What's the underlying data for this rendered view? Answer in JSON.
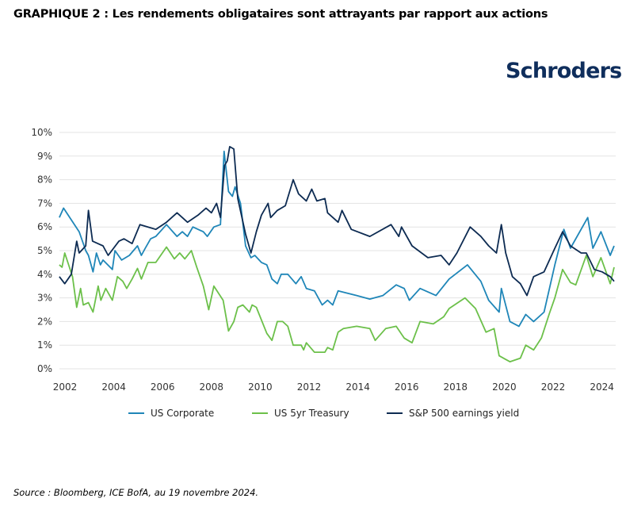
{
  "title": "GRAPHIQUE 2 : Les rendements obligataires sont attrayants par rapport aux actions",
  "logo_text": "Schroders",
  "source": "Source : Bloomberg, ICE BofA, au 19 novembre 2024.",
  "chart_data": {
    "type": "line",
    "title": "",
    "xlabel": "",
    "ylabel": "",
    "xlim": [
      2001.75,
      2024.55
    ],
    "ylim": [
      0,
      10
    ],
    "grid": true,
    "legend": "bottom",
    "x_ticks": [
      "2002",
      "2004",
      "2006",
      "2008",
      "2010",
      "2012",
      "2014",
      "2016",
      "2018",
      "2020",
      "2022",
      "2024"
    ],
    "y_ticks": [
      "0%",
      "1%",
      "2%",
      "3%",
      "4%",
      "5%",
      "6%",
      "7%",
      "8%",
      "9%",
      "10%"
    ],
    "series": [
      {
        "name": "US Corporate",
        "color": "#1f86b8",
        "points": [
          [
            2001.77,
            6.4
          ],
          [
            2001.94,
            6.8
          ],
          [
            2002.26,
            6.3
          ],
          [
            2002.58,
            5.8
          ],
          [
            2002.85,
            5.0
          ],
          [
            2002.96,
            4.8
          ],
          [
            2003.15,
            4.1
          ],
          [
            2003.29,
            4.9
          ],
          [
            2003.45,
            4.4
          ],
          [
            2003.56,
            4.6
          ],
          [
            2003.94,
            4.2
          ],
          [
            2004.05,
            5.0
          ],
          [
            2004.32,
            4.6
          ],
          [
            2004.64,
            4.8
          ],
          [
            2004.97,
            5.2
          ],
          [
            2005.13,
            4.8
          ],
          [
            2005.29,
            5.1
          ],
          [
            2005.51,
            5.5
          ],
          [
            2005.72,
            5.6
          ],
          [
            2006.16,
            6.1
          ],
          [
            2006.59,
            5.6
          ],
          [
            2006.81,
            5.8
          ],
          [
            2007.02,
            5.6
          ],
          [
            2007.24,
            6.0
          ],
          [
            2007.67,
            5.8
          ],
          [
            2007.83,
            5.6
          ],
          [
            2008.1,
            6.0
          ],
          [
            2008.37,
            6.1
          ],
          [
            2008.52,
            9.2
          ],
          [
            2008.7,
            7.5
          ],
          [
            2008.86,
            7.3
          ],
          [
            2008.97,
            7.7
          ],
          [
            2009.19,
            7.0
          ],
          [
            2009.4,
            5.2
          ],
          [
            2009.62,
            4.7
          ],
          [
            2009.78,
            4.8
          ],
          [
            2010.05,
            4.5
          ],
          [
            2010.27,
            4.4
          ],
          [
            2010.48,
            3.8
          ],
          [
            2010.7,
            3.6
          ],
          [
            2010.86,
            4.0
          ],
          [
            2011.13,
            4.0
          ],
          [
            2011.46,
            3.6
          ],
          [
            2011.68,
            3.9
          ],
          [
            2011.89,
            3.4
          ],
          [
            2012.22,
            3.3
          ],
          [
            2012.54,
            2.7
          ],
          [
            2012.76,
            2.9
          ],
          [
            2012.97,
            2.7
          ],
          [
            2013.19,
            3.3
          ],
          [
            2013.95,
            3.1
          ],
          [
            2014.49,
            2.95
          ],
          [
            2015.03,
            3.1
          ],
          [
            2015.57,
            3.55
          ],
          [
            2015.9,
            3.4
          ],
          [
            2016.11,
            2.9
          ],
          [
            2016.55,
            3.4
          ],
          [
            2017.2,
            3.1
          ],
          [
            2017.74,
            3.8
          ],
          [
            2018.49,
            4.4
          ],
          [
            2019.04,
            3.7
          ],
          [
            2019.36,
            2.9
          ],
          [
            2019.79,
            2.4
          ],
          [
            2019.88,
            3.4
          ],
          [
            2020.23,
            2.0
          ],
          [
            2020.6,
            1.8
          ],
          [
            2020.88,
            2.3
          ],
          [
            2021.2,
            2.0
          ],
          [
            2021.63,
            2.4
          ],
          [
            2022.07,
            4.4
          ],
          [
            2022.44,
            5.9
          ],
          [
            2022.71,
            5.1
          ],
          [
            2023.42,
            6.4
          ],
          [
            2023.63,
            5.1
          ],
          [
            2023.96,
            5.8
          ],
          [
            2024.34,
            4.8
          ],
          [
            2024.5,
            5.2
          ]
        ]
      },
      {
        "name": "US 5yr Treasury",
        "color": "#6cc04a",
        "points": [
          [
            2001.77,
            4.4
          ],
          [
            2001.88,
            4.3
          ],
          [
            2001.99,
            4.9
          ],
          [
            2002.15,
            4.4
          ],
          [
            2002.31,
            3.9
          ],
          [
            2002.48,
            2.6
          ],
          [
            2002.64,
            3.4
          ],
          [
            2002.75,
            2.7
          ],
          [
            2002.96,
            2.8
          ],
          [
            2003.15,
            2.4
          ],
          [
            2003.36,
            3.5
          ],
          [
            2003.47,
            2.9
          ],
          [
            2003.67,
            3.4
          ],
          [
            2003.94,
            2.9
          ],
          [
            2004.15,
            3.9
          ],
          [
            2004.37,
            3.7
          ],
          [
            2004.53,
            3.4
          ],
          [
            2004.75,
            3.8
          ],
          [
            2004.97,
            4.25
          ],
          [
            2005.13,
            3.8
          ],
          [
            2005.4,
            4.5
          ],
          [
            2005.72,
            4.5
          ],
          [
            2006.16,
            5.15
          ],
          [
            2006.48,
            4.65
          ],
          [
            2006.7,
            4.9
          ],
          [
            2006.91,
            4.65
          ],
          [
            2007.18,
            5.0
          ],
          [
            2007.4,
            4.3
          ],
          [
            2007.67,
            3.5
          ],
          [
            2007.89,
            2.5
          ],
          [
            2008.1,
            3.5
          ],
          [
            2008.48,
            2.9
          ],
          [
            2008.7,
            1.6
          ],
          [
            2008.92,
            2.0
          ],
          [
            2009.08,
            2.6
          ],
          [
            2009.29,
            2.7
          ],
          [
            2009.56,
            2.4
          ],
          [
            2009.67,
            2.7
          ],
          [
            2009.84,
            2.6
          ],
          [
            2010.27,
            1.5
          ],
          [
            2010.48,
            1.2
          ],
          [
            2010.7,
            2.0
          ],
          [
            2010.92,
            2.0
          ],
          [
            2011.13,
            1.8
          ],
          [
            2011.35,
            1.0
          ],
          [
            2011.68,
            1.0
          ],
          [
            2011.78,
            0.8
          ],
          [
            2011.89,
            1.1
          ],
          [
            2012.22,
            0.7
          ],
          [
            2012.65,
            0.7
          ],
          [
            2012.76,
            0.9
          ],
          [
            2012.97,
            0.8
          ],
          [
            2013.19,
            1.55
          ],
          [
            2013.41,
            1.7
          ],
          [
            2013.95,
            1.8
          ],
          [
            2014.49,
            1.7
          ],
          [
            2014.71,
            1.2
          ],
          [
            2015.14,
            1.7
          ],
          [
            2015.57,
            1.8
          ],
          [
            2015.9,
            1.3
          ],
          [
            2016.22,
            1.1
          ],
          [
            2016.55,
            2.0
          ],
          [
            2017.09,
            1.9
          ],
          [
            2017.52,
            2.2
          ],
          [
            2017.74,
            2.55
          ],
          [
            2018.39,
            3.0
          ],
          [
            2018.82,
            2.55
          ],
          [
            2019.25,
            1.55
          ],
          [
            2019.58,
            1.7
          ],
          [
            2019.79,
            0.55
          ],
          [
            2020.23,
            0.3
          ],
          [
            2020.66,
            0.45
          ],
          [
            2020.88,
            1.0
          ],
          [
            2021.2,
            0.8
          ],
          [
            2021.52,
            1.3
          ],
          [
            2021.85,
            2.35
          ],
          [
            2022.07,
            3.0
          ],
          [
            2022.39,
            4.2
          ],
          [
            2022.71,
            3.65
          ],
          [
            2022.93,
            3.55
          ],
          [
            2023.36,
            4.8
          ],
          [
            2023.63,
            3.9
          ],
          [
            2023.96,
            4.7
          ],
          [
            2024.34,
            3.6
          ],
          [
            2024.5,
            4.3
          ]
        ]
      },
      {
        "name": "S&P 500 earnings yield",
        "color": "#0d2b52",
        "points": [
          [
            2001.77,
            3.9
          ],
          [
            2001.99,
            3.6
          ],
          [
            2002.26,
            4.0
          ],
          [
            2002.48,
            5.4
          ],
          [
            2002.58,
            4.9
          ],
          [
            2002.85,
            5.2
          ],
          [
            2002.96,
            6.7
          ],
          [
            2003.13,
            5.4
          ],
          [
            2003.56,
            5.2
          ],
          [
            2003.77,
            4.8
          ],
          [
            2004.21,
            5.4
          ],
          [
            2004.42,
            5.5
          ],
          [
            2004.75,
            5.3
          ],
          [
            2005.07,
            6.1
          ],
          [
            2005.4,
            6.0
          ],
          [
            2005.72,
            5.9
          ],
          [
            2006.16,
            6.2
          ],
          [
            2006.59,
            6.6
          ],
          [
            2007.02,
            6.2
          ],
          [
            2007.45,
            6.5
          ],
          [
            2007.78,
            6.8
          ],
          [
            2008.0,
            6.6
          ],
          [
            2008.21,
            7.0
          ],
          [
            2008.37,
            6.4
          ],
          [
            2008.54,
            8.6
          ],
          [
            2008.65,
            8.8
          ],
          [
            2008.75,
            9.4
          ],
          [
            2008.92,
            9.3
          ],
          [
            2009.08,
            7.2
          ],
          [
            2009.4,
            5.7
          ],
          [
            2009.62,
            4.9
          ],
          [
            2009.84,
            5.8
          ],
          [
            2010.05,
            6.5
          ],
          [
            2010.32,
            7.0
          ],
          [
            2010.43,
            6.4
          ],
          [
            2010.7,
            6.7
          ],
          [
            2011.03,
            6.9
          ],
          [
            2011.35,
            8.0
          ],
          [
            2011.57,
            7.4
          ],
          [
            2011.89,
            7.1
          ],
          [
            2012.11,
            7.6
          ],
          [
            2012.32,
            7.1
          ],
          [
            2012.65,
            7.2
          ],
          [
            2012.76,
            6.6
          ],
          [
            2013.19,
            6.2
          ],
          [
            2013.35,
            6.7
          ],
          [
            2013.73,
            5.9
          ],
          [
            2014.49,
            5.6
          ],
          [
            2015.36,
            6.1
          ],
          [
            2015.68,
            5.6
          ],
          [
            2015.79,
            6.0
          ],
          [
            2016.22,
            5.2
          ],
          [
            2016.87,
            4.7
          ],
          [
            2017.41,
            4.8
          ],
          [
            2017.74,
            4.4
          ],
          [
            2018.06,
            4.9
          ],
          [
            2018.6,
            6.0
          ],
          [
            2019.04,
            5.6
          ],
          [
            2019.36,
            5.2
          ],
          [
            2019.68,
            4.9
          ],
          [
            2019.88,
            6.1
          ],
          [
            2020.06,
            4.9
          ],
          [
            2020.33,
            3.9
          ],
          [
            2020.66,
            3.6
          ],
          [
            2020.93,
            3.1
          ],
          [
            2021.2,
            3.9
          ],
          [
            2021.63,
            4.1
          ],
          [
            2022.07,
            5.1
          ],
          [
            2022.39,
            5.8
          ],
          [
            2022.71,
            5.2
          ],
          [
            2023.15,
            4.9
          ],
          [
            2023.36,
            4.9
          ],
          [
            2023.69,
            4.2
          ],
          [
            2024.01,
            4.1
          ],
          [
            2024.34,
            3.9
          ],
          [
            2024.5,
            3.7
          ]
        ]
      }
    ]
  }
}
